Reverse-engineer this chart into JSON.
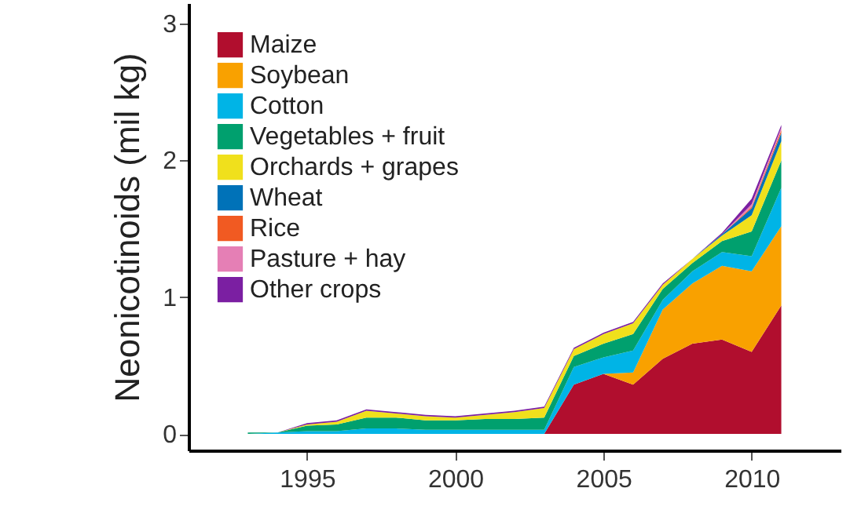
{
  "chart_data": {
    "type": "area",
    "stacked": true,
    "ylabel": "Neonicotinoids (mil kg)",
    "legend": "top left",
    "x": [
      1993,
      1994,
      1995,
      1996,
      1997,
      1998,
      1999,
      2000,
      2001,
      2002,
      2003,
      2004,
      2005,
      2006,
      2007,
      2008,
      2009,
      2010,
      2011
    ],
    "xlim": [
      1991,
      2013
    ],
    "xticks": [
      1995,
      2000,
      2005,
      2010
    ],
    "ylim": [
      -0.12,
      3.15
    ],
    "yticks": [
      0,
      1,
      2,
      3
    ],
    "series": [
      {
        "name": "Maize",
        "color": "#b10e2e",
        "values": [
          0,
          0,
          0,
          0,
          0,
          0,
          0,
          0,
          0,
          0,
          0,
          0.36,
          0.44,
          0.36,
          0.55,
          0.66,
          0.69,
          0.6,
          0.94
        ]
      },
      {
        "name": "Soybean",
        "color": "#f9a100",
        "values": [
          0,
          0,
          0,
          0,
          0,
          0,
          0,
          0,
          0,
          0,
          0,
          0,
          0,
          0.09,
          0.36,
          0.44,
          0.54,
          0.59,
          0.58
        ]
      },
      {
        "name": "Cotton",
        "color": "#00b4e6",
        "values": [
          0,
          0.01,
          0.02,
          0.02,
          0.04,
          0.04,
          0.03,
          0.03,
          0.03,
          0.03,
          0.03,
          0.13,
          0.12,
          0.16,
          0.07,
          0.09,
          0.1,
          0.11,
          0.28
        ]
      },
      {
        "name": "Vegetables + fruit",
        "color": "#00a06e",
        "values": [
          0.01,
          0,
          0.04,
          0.05,
          0.08,
          0.08,
          0.07,
          0.07,
          0.08,
          0.08,
          0.09,
          0.08,
          0.1,
          0.12,
          0.08,
          0.06,
          0.08,
          0.18,
          0.2
        ]
      },
      {
        "name": "Orchards + grapes",
        "color": "#f0e01c",
        "values": [
          0,
          0,
          0.01,
          0.02,
          0.05,
          0.03,
          0.03,
          0.02,
          0.03,
          0.05,
          0.07,
          0.05,
          0.07,
          0.08,
          0.03,
          0.03,
          0.04,
          0.12,
          0.14
        ]
      },
      {
        "name": "Wheat",
        "color": "#0072b8",
        "values": [
          0,
          0,
          0,
          0,
          0,
          0,
          0,
          0,
          0,
          0,
          0,
          0,
          0,
          0,
          0,
          0,
          0.01,
          0.05,
          0.06
        ]
      },
      {
        "name": "Rice",
        "color": "#f15a22",
        "values": [
          0,
          0,
          0,
          0,
          0,
          0,
          0,
          0,
          0,
          0,
          0,
          0,
          0,
          0,
          0,
          0,
          0,
          0.01,
          0.02
        ]
      },
      {
        "name": "Pasture + hay",
        "color": "#e57fb5",
        "values": [
          0,
          0,
          0,
          0,
          0,
          0,
          0,
          0,
          0,
          0,
          0,
          0,
          0,
          0,
          0,
          0,
          0,
          0.02,
          0.02
        ]
      },
      {
        "name": "Other crops",
        "color": "#7b1fa2",
        "values": [
          0,
          0,
          0.01,
          0.01,
          0.01,
          0.01,
          0.01,
          0.01,
          0.01,
          0.01,
          0.01,
          0.01,
          0.01,
          0.01,
          0.01,
          0,
          0.01,
          0.04,
          0.02
        ]
      }
    ]
  }
}
